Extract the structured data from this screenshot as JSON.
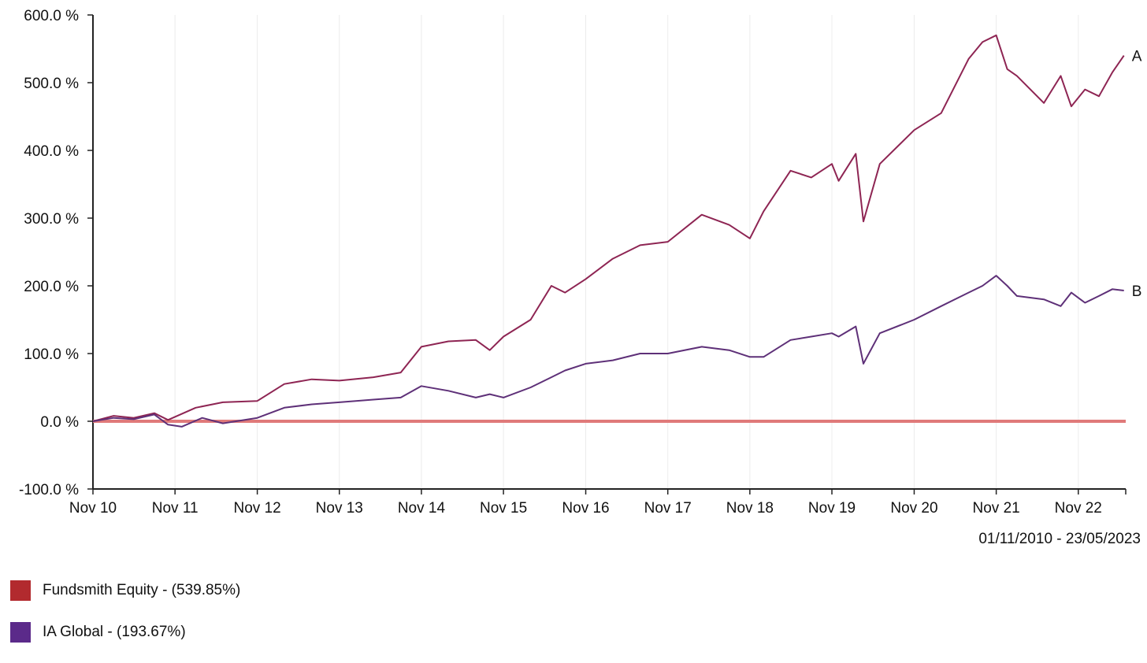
{
  "chart_data": {
    "type": "line",
    "title": "",
    "xlabel": "",
    "ylabel": "",
    "date_range": "01/11/2010 - 23/05/2023",
    "x_ticks": [
      "Nov 10",
      "Nov 11",
      "Nov 12",
      "Nov 13",
      "Nov 14",
      "Nov 15",
      "Nov 16",
      "Nov 17",
      "Nov 18",
      "Nov 19",
      "Nov 20",
      "Nov 21",
      "Nov 22"
    ],
    "y_ticks": [
      "600.0 %",
      "500.0 %",
      "400.0 %",
      "300.0 %",
      "200.0 %",
      "100.0 %",
      "0.0 %",
      "-100.0 %"
    ],
    "y_tick_values": [
      600,
      500,
      400,
      300,
      200,
      100,
      0,
      -100
    ],
    "ylim": [
      -100,
      600
    ],
    "xlim": [
      "2010-11-01",
      "2023-05-31"
    ],
    "grid": "vertical",
    "baseline": {
      "value": 0,
      "color": "#e07a7a"
    },
    "legend_position": "bottom-left",
    "series": [
      {
        "name": "Fundsmith Equity - (539.85%)",
        "end_label": "A",
        "color": "#b22a2e",
        "line_color": "#8e2553",
        "x": [
          "2010-11-01",
          "2011-02-01",
          "2011-05-01",
          "2011-08-01",
          "2011-10-01",
          "2012-02-01",
          "2012-06-01",
          "2012-11-01",
          "2013-03-01",
          "2013-07-01",
          "2013-11-01",
          "2014-04-01",
          "2014-08-01",
          "2014-11-01",
          "2015-03-01",
          "2015-07-01",
          "2015-09-01",
          "2015-11-01",
          "2016-03-01",
          "2016-06-01",
          "2016-08-01",
          "2016-11-01",
          "2017-03-01",
          "2017-07-01",
          "2017-11-01",
          "2018-04-01",
          "2018-08-01",
          "2018-11-01",
          "2019-01-01",
          "2019-05-01",
          "2019-08-01",
          "2019-11-01",
          "2019-12-01",
          "2020-02-15",
          "2020-03-20",
          "2020-06-01",
          "2020-11-01",
          "2021-03-01",
          "2021-07-01",
          "2021-09-01",
          "2021-11-01",
          "2021-12-20",
          "2022-02-01",
          "2022-06-01",
          "2022-08-15",
          "2022-10-01",
          "2022-12-01",
          "2023-02-01",
          "2023-04-01",
          "2023-05-23"
        ],
        "values": [
          0,
          8,
          5,
          12,
          2,
          20,
          28,
          30,
          55,
          62,
          60,
          65,
          72,
          110,
          118,
          120,
          105,
          125,
          150,
          200,
          190,
          210,
          240,
          260,
          265,
          305,
          290,
          270,
          310,
          370,
          360,
          380,
          355,
          395,
          295,
          380,
          430,
          455,
          535,
          560,
          570,
          520,
          510,
          470,
          510,
          465,
          490,
          480,
          515,
          540
        ]
      },
      {
        "name": "IA Global - (193.67%)",
        "end_label": "B",
        "color": "#5b2a8a",
        "line_color": "#5e3078",
        "x": [
          "2010-11-01",
          "2011-02-01",
          "2011-05-01",
          "2011-08-01",
          "2011-10-01",
          "2011-12-01",
          "2012-03-01",
          "2012-06-01",
          "2012-11-01",
          "2013-03-01",
          "2013-07-01",
          "2013-11-01",
          "2014-04-01",
          "2014-08-01",
          "2014-11-01",
          "2015-03-01",
          "2015-07-01",
          "2015-09-01",
          "2015-11-01",
          "2016-03-01",
          "2016-06-01",
          "2016-08-01",
          "2016-11-01",
          "2017-03-01",
          "2017-07-01",
          "2017-11-01",
          "2018-04-01",
          "2018-08-01",
          "2018-11-01",
          "2019-01-01",
          "2019-05-01",
          "2019-08-01",
          "2019-11-01",
          "2019-12-01",
          "2020-02-15",
          "2020-03-20",
          "2020-06-01",
          "2020-11-01",
          "2021-03-01",
          "2021-07-01",
          "2021-09-01",
          "2021-11-01",
          "2021-12-20",
          "2022-02-01",
          "2022-06-01",
          "2022-08-15",
          "2022-10-01",
          "2022-12-01",
          "2023-02-01",
          "2023-04-01",
          "2023-05-23"
        ],
        "values": [
          0,
          5,
          3,
          10,
          -5,
          -8,
          5,
          -3,
          5,
          20,
          25,
          28,
          32,
          35,
          52,
          45,
          35,
          40,
          35,
          50,
          65,
          75,
          85,
          90,
          100,
          100,
          110,
          105,
          95,
          95,
          120,
          125,
          130,
          125,
          140,
          85,
          130,
          150,
          170,
          190,
          200,
          215,
          200,
          185,
          180,
          170,
          190,
          175,
          185,
          195,
          193
        ]
      }
    ]
  }
}
